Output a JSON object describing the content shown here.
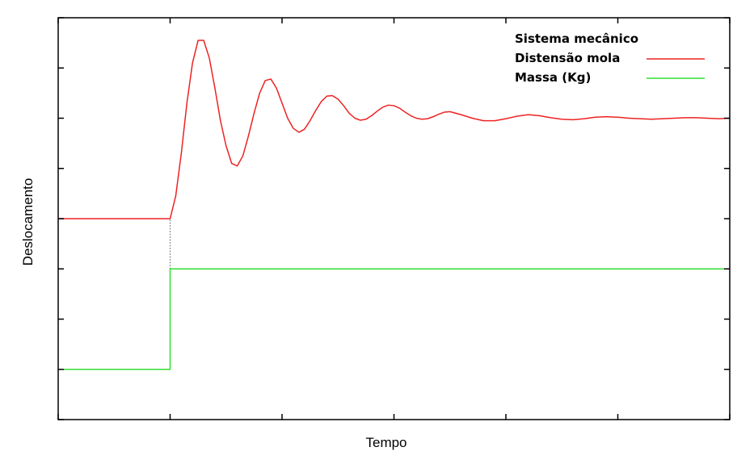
{
  "chart_data": {
    "type": "line",
    "title": "",
    "xlabel": "Tempo",
    "ylabel": "Deslocamento",
    "xlim": [
      0,
      6
    ],
    "ylim": [
      -4,
      4
    ],
    "xticks": [
      0,
      1,
      2,
      3,
      4,
      5,
      6
    ],
    "yticks": [
      -4,
      -3,
      -2,
      -1,
      0,
      1,
      2,
      3,
      4
    ],
    "x_tick_labels_shown": false,
    "y_tick_labels_shown": false,
    "grid": false,
    "legend": {
      "title": "Sistema mecânico",
      "position": "top-right"
    },
    "connector": {
      "x": 1,
      "y_from": -1,
      "y_to": 0,
      "style": "dotted",
      "color": "#555555"
    },
    "series": [
      {
        "name": "Distensão mola",
        "color": "#ee2222",
        "x": [
          0,
          1,
          1.05,
          1.1,
          1.15,
          1.2,
          1.25,
          1.3,
          1.35,
          1.4,
          1.45,
          1.5,
          1.55,
          1.6,
          1.65,
          1.7,
          1.75,
          1.8,
          1.85,
          1.9,
          1.95,
          2,
          2.05,
          2.1,
          2.15,
          2.2,
          2.25,
          2.3,
          2.35,
          2.4,
          2.45,
          2.5,
          2.55,
          2.6,
          2.65,
          2.7,
          2.75,
          2.8,
          2.85,
          2.9,
          2.95,
          3,
          3.05,
          3.1,
          3.15,
          3.2,
          3.25,
          3.3,
          3.35,
          3.4,
          3.45,
          3.5,
          3.6,
          3.7,
          3.8,
          3.9,
          4,
          4.1,
          4.2,
          4.3,
          4.4,
          4.5,
          4.6,
          4.7,
          4.8,
          4.9,
          5,
          5.1,
          5.2,
          5.3,
          5.4,
          5.5,
          5.6,
          5.7,
          5.8,
          5.9,
          6
        ],
        "y": [
          0,
          0,
          0.45,
          1.3,
          2.3,
          3.1,
          3.55,
          3.55,
          3.2,
          2.6,
          1.95,
          1.45,
          1.1,
          1.05,
          1.25,
          1.65,
          2.1,
          2.5,
          2.75,
          2.78,
          2.6,
          2.3,
          2.0,
          1.8,
          1.72,
          1.78,
          1.95,
          2.15,
          2.33,
          2.44,
          2.45,
          2.38,
          2.25,
          2.1,
          2.0,
          1.96,
          1.98,
          2.05,
          2.14,
          2.22,
          2.26,
          2.25,
          2.2,
          2.12,
          2.05,
          2.0,
          1.98,
          1.99,
          2.03,
          2.08,
          2.12,
          2.13,
          2.07,
          2.0,
          1.95,
          1.95,
          1.99,
          2.04,
          2.07,
          2.05,
          2.01,
          1.98,
          1.97,
          1.99,
          2.02,
          2.03,
          2.02,
          2.0,
          1.99,
          1.98,
          1.99,
          2.0,
          2.01,
          2.01,
          2.0,
          1.99,
          2.0
        ]
      },
      {
        "name": "Massa (Kg)",
        "color": "#33dd33",
        "x": [
          0,
          1,
          1,
          6
        ],
        "y": [
          -3,
          -3,
          -1,
          -1
        ]
      }
    ]
  }
}
